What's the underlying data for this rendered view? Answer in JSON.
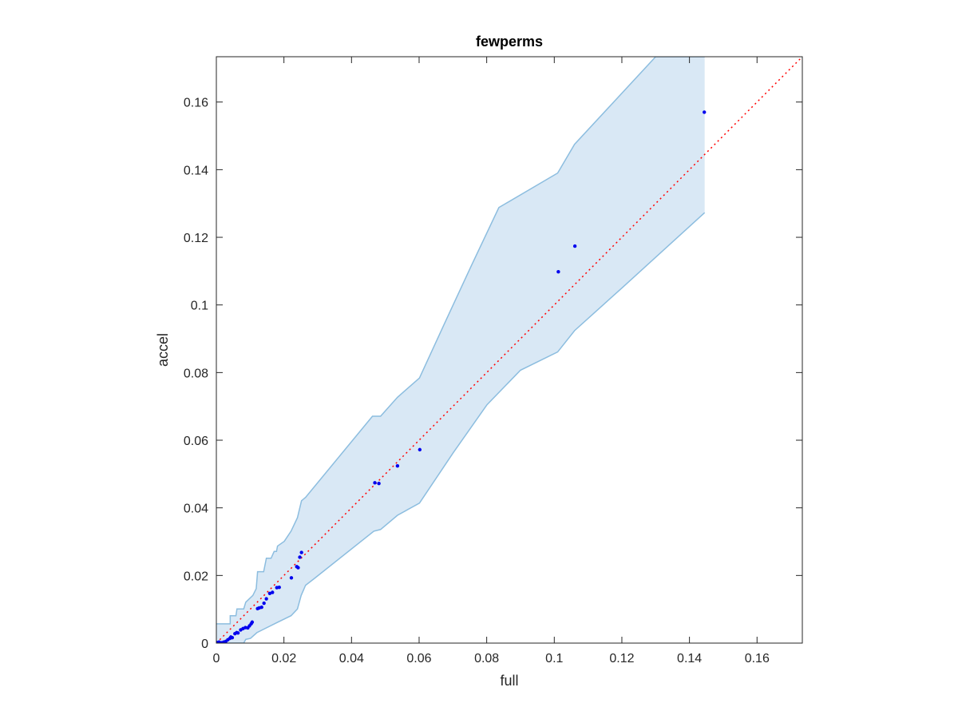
{
  "chart_data": {
    "type": "scatter",
    "title": "fewperms",
    "xlabel": "full",
    "ylabel": "accel",
    "xlim": [
      0,
      0.1734
    ],
    "ylim": [
      0,
      0.1734
    ],
    "xticks": [
      "0",
      "0.02",
      "0.04",
      "0.06",
      "0.08",
      "0.1",
      "0.12",
      "0.14",
      "0.16"
    ],
    "yticks": [
      "0",
      "0.02",
      "0.04",
      "0.06",
      "0.08",
      "0.1",
      "0.12",
      "0.14",
      "0.16"
    ],
    "grid": false,
    "legend": "none",
    "colors": {
      "points": "#0000ee",
      "band_fill": "#d9e8f5",
      "band_edge": "#8cbddf",
      "diagonal": "#ff0000",
      "axis": "#262626"
    },
    "diagonal": {
      "x": [
        0,
        0.1734
      ],
      "y": [
        0,
        0.1734
      ]
    },
    "band": {
      "upper": [
        [
          0,
          0.0057
        ],
        [
          0.0041,
          0.0057
        ],
        [
          0.0041,
          0.0081
        ],
        [
          0.0058,
          0.0081
        ],
        [
          0.0061,
          0.0101
        ],
        [
          0.0081,
          0.0101
        ],
        [
          0.0087,
          0.0121
        ],
        [
          0.0108,
          0.0141
        ],
        [
          0.0118,
          0.0161
        ],
        [
          0.0122,
          0.0211
        ],
        [
          0.014,
          0.0211
        ],
        [
          0.0148,
          0.0251
        ],
        [
          0.0162,
          0.0251
        ],
        [
          0.0171,
          0.0271
        ],
        [
          0.0178,
          0.0271
        ],
        [
          0.0181,
          0.0287
        ],
        [
          0.0201,
          0.0301
        ],
        [
          0.0221,
          0.0331
        ],
        [
          0.024,
          0.0371
        ],
        [
          0.0252,
          0.0421
        ],
        [
          0.0264,
          0.0431
        ],
        [
          0.0462,
          0.0671
        ],
        [
          0.0486,
          0.0671
        ],
        [
          0.0536,
          0.0727
        ],
        [
          0.0601,
          0.0784
        ],
        [
          0.0676,
          0.0947
        ],
        [
          0.0755,
          0.1117
        ],
        [
          0.0836,
          0.1288
        ],
        [
          0.101,
          0.139
        ],
        [
          0.106,
          0.1475
        ],
        [
          0.13,
          0.1734
        ],
        [
          0.1445,
          0.1734
        ]
      ],
      "lower": [
        [
          0,
          0
        ],
        [
          0.0081,
          0
        ],
        [
          0.0087,
          0.0011
        ],
        [
          0.0101,
          0.0014
        ],
        [
          0.012,
          0.0031
        ],
        [
          0.014,
          0.0041
        ],
        [
          0.018,
          0.0061
        ],
        [
          0.0221,
          0.0081
        ],
        [
          0.024,
          0.0101
        ],
        [
          0.0251,
          0.0141
        ],
        [
          0.0264,
          0.0171
        ],
        [
          0.029,
          0.0191
        ],
        [
          0.0466,
          0.0331
        ],
        [
          0.0486,
          0.0336
        ],
        [
          0.0536,
          0.0378
        ],
        [
          0.0601,
          0.0414
        ],
        [
          0.0701,
          0.0563
        ],
        [
          0.0801,
          0.0705
        ],
        [
          0.09,
          0.0807
        ],
        [
          0.101,
          0.0861
        ],
        [
          0.106,
          0.0924
        ],
        [
          0.12,
          0.105
        ],
        [
          0.1445,
          0.1273
        ]
      ]
    },
    "points": {
      "x": [
        0.0001,
        0.0008,
        0.0015,
        0.0022,
        0.0028,
        0.0034,
        0.004,
        0.0043,
        0.0047,
        0.0055,
        0.006,
        0.0064,
        0.0072,
        0.0079,
        0.0086,
        0.0093,
        0.0098,
        0.0103,
        0.0106,
        0.0122,
        0.0127,
        0.0134,
        0.0141,
        0.0148,
        0.0158,
        0.0166,
        0.0179,
        0.0186,
        0.0222,
        0.0238,
        0.0242,
        0.0247,
        0.0252,
        0.0469,
        0.0481,
        0.0536,
        0.0602,
        0.1012,
        0.1061,
        0.1444
      ],
      "y": [
        0.0002,
        0.0003,
        0.0001,
        0.0003,
        0.0005,
        0.001,
        0.0014,
        0.0018,
        0.0016,
        0.0028,
        0.0031,
        0.003,
        0.0039,
        0.0043,
        0.0046,
        0.0045,
        0.0051,
        0.0057,
        0.0062,
        0.0102,
        0.0104,
        0.0106,
        0.0118,
        0.0131,
        0.0147,
        0.015,
        0.0164,
        0.0165,
        0.0193,
        0.0226,
        0.0223,
        0.0254,
        0.0268,
        0.0474,
        0.0472,
        0.0524,
        0.0572,
        0.1098,
        0.1174,
        0.157
      ]
    }
  }
}
